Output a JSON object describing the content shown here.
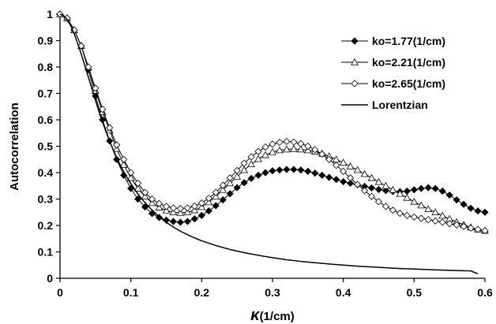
{
  "chart_data": {
    "type": "line",
    "xlabel_symbol": "κ",
    "xlabel_unit": "(1/cm)",
    "ylabel": "Autocorrelation",
    "xlim": [
      0,
      0.6
    ],
    "ylim": [
      0,
      1
    ],
    "x_ticks": [
      "0",
      "0.1",
      "0.2",
      "0.3",
      "0.4",
      "0.5",
      "0.6"
    ],
    "y_ticks": [
      "0",
      "0.1",
      "0.2",
      "0.3",
      "0.4",
      "0.5",
      "0.6",
      "0.7",
      "0.8",
      "0.9",
      "1"
    ],
    "grid": false,
    "legend_position": "top-right",
    "series": [
      {
        "name": "ko=1.77(1/cm)",
        "marker": "filled-diamond",
        "color": "#000000",
        "x": [
          0,
          0.01,
          0.02,
          0.03,
          0.04,
          0.05,
          0.06,
          0.07,
          0.08,
          0.09,
          0.1,
          0.11,
          0.12,
          0.13,
          0.14,
          0.15,
          0.16,
          0.17,
          0.18,
          0.19,
          0.2,
          0.21,
          0.22,
          0.23,
          0.24,
          0.25,
          0.26,
          0.27,
          0.28,
          0.29,
          0.3,
          0.31,
          0.32,
          0.33,
          0.34,
          0.35,
          0.36,
          0.37,
          0.38,
          0.39,
          0.4,
          0.41,
          0.42,
          0.43,
          0.44,
          0.45,
          0.46,
          0.47,
          0.48,
          0.49,
          0.5,
          0.51,
          0.52,
          0.53,
          0.54,
          0.55,
          0.56,
          0.57,
          0.58,
          0.59,
          0.6
        ],
        "values": [
          1.0,
          0.985,
          0.94,
          0.88,
          0.79,
          0.69,
          0.6,
          0.52,
          0.45,
          0.39,
          0.34,
          0.3,
          0.27,
          0.245,
          0.23,
          0.22,
          0.215,
          0.212,
          0.215,
          0.225,
          0.238,
          0.255,
          0.275,
          0.297,
          0.32,
          0.343,
          0.362,
          0.378,
          0.39,
          0.4,
          0.407,
          0.41,
          0.412,
          0.412,
          0.41,
          0.405,
          0.398,
          0.39,
          0.382,
          0.374,
          0.366,
          0.36,
          0.354,
          0.348,
          0.342,
          0.336,
          0.332,
          0.329,
          0.328,
          0.33,
          0.335,
          0.34,
          0.343,
          0.34,
          0.33,
          0.315,
          0.297,
          0.28,
          0.265,
          0.255,
          0.25
        ]
      },
      {
        "name": "ko=2.21(1/cm)",
        "marker": "open-triangle",
        "color": "#000000",
        "x": [
          0,
          0.01,
          0.02,
          0.03,
          0.04,
          0.05,
          0.06,
          0.07,
          0.08,
          0.09,
          0.1,
          0.11,
          0.12,
          0.13,
          0.14,
          0.15,
          0.16,
          0.17,
          0.18,
          0.19,
          0.2,
          0.21,
          0.22,
          0.23,
          0.24,
          0.25,
          0.26,
          0.27,
          0.28,
          0.29,
          0.3,
          0.31,
          0.32,
          0.33,
          0.34,
          0.35,
          0.36,
          0.37,
          0.38,
          0.39,
          0.4,
          0.41,
          0.42,
          0.43,
          0.44,
          0.45,
          0.46,
          0.47,
          0.48,
          0.49,
          0.5,
          0.51,
          0.52,
          0.53,
          0.54,
          0.55,
          0.56,
          0.57,
          0.58,
          0.59,
          0.6
        ],
        "values": [
          1.0,
          0.985,
          0.94,
          0.88,
          0.8,
          0.71,
          0.63,
          0.56,
          0.49,
          0.43,
          0.38,
          0.34,
          0.31,
          0.285,
          0.268,
          0.257,
          0.25,
          0.248,
          0.25,
          0.258,
          0.27,
          0.288,
          0.31,
          0.335,
          0.36,
          0.385,
          0.41,
          0.432,
          0.452,
          0.467,
          0.478,
          0.485,
          0.488,
          0.49,
          0.488,
          0.485,
          0.48,
          0.472,
          0.462,
          0.45,
          0.438,
          0.424,
          0.41,
          0.395,
          0.38,
          0.365,
          0.35,
          0.335,
          0.32,
          0.305,
          0.29,
          0.276,
          0.262,
          0.25,
          0.237,
          0.225,
          0.213,
          0.203,
          0.193,
          0.185,
          0.18
        ]
      },
      {
        "name": "ko=2.65(1/cm)",
        "marker": "open-diamond",
        "color": "#000000",
        "x": [
          0,
          0.01,
          0.02,
          0.03,
          0.04,
          0.05,
          0.06,
          0.07,
          0.08,
          0.09,
          0.1,
          0.11,
          0.12,
          0.13,
          0.14,
          0.15,
          0.16,
          0.17,
          0.18,
          0.19,
          0.2,
          0.21,
          0.22,
          0.23,
          0.24,
          0.25,
          0.26,
          0.27,
          0.28,
          0.29,
          0.3,
          0.31,
          0.32,
          0.33,
          0.34,
          0.35,
          0.36,
          0.37,
          0.38,
          0.39,
          0.4,
          0.41,
          0.42,
          0.43,
          0.44,
          0.45,
          0.46,
          0.47,
          0.48,
          0.49,
          0.5,
          0.51,
          0.52,
          0.53,
          0.54,
          0.55,
          0.56,
          0.57,
          0.58,
          0.59,
          0.6
        ],
        "values": [
          1.0,
          0.985,
          0.94,
          0.88,
          0.8,
          0.72,
          0.64,
          0.57,
          0.505,
          0.45,
          0.4,
          0.36,
          0.325,
          0.3,
          0.283,
          0.272,
          0.266,
          0.264,
          0.266,
          0.273,
          0.285,
          0.303,
          0.325,
          0.352,
          0.38,
          0.408,
          0.435,
          0.46,
          0.48,
          0.497,
          0.508,
          0.515,
          0.518,
          0.516,
          0.51,
          0.5,
          0.487,
          0.47,
          0.45,
          0.428,
          0.405,
          0.38,
          0.355,
          0.332,
          0.31,
          0.29,
          0.272,
          0.258,
          0.246,
          0.238,
          0.232,
          0.227,
          0.222,
          0.217,
          0.212,
          0.207,
          0.202,
          0.196,
          0.19,
          0.185,
          0.18
        ]
      },
      {
        "name": "Lorentzian",
        "marker": "none",
        "color": "#000000",
        "x": [
          0,
          0.005,
          0.01,
          0.015,
          0.02,
          0.025,
          0.03,
          0.035,
          0.04,
          0.045,
          0.05,
          0.055,
          0.06,
          0.065,
          0.07,
          0.075,
          0.08,
          0.085,
          0.09,
          0.095,
          0.1,
          0.11,
          0.12,
          0.13,
          0.14,
          0.15,
          0.16,
          0.17,
          0.18,
          0.19,
          0.2,
          0.22,
          0.24,
          0.26,
          0.28,
          0.3,
          0.32,
          0.34,
          0.36,
          0.38,
          0.4,
          0.42,
          0.44,
          0.46,
          0.48,
          0.5,
          0.52,
          0.54,
          0.56,
          0.58,
          0.59
        ],
        "values": [
          1.0,
          0.995,
          0.98,
          0.957,
          0.926,
          0.889,
          0.849,
          0.806,
          0.762,
          0.718,
          0.674,
          0.632,
          0.592,
          0.554,
          0.519,
          0.487,
          0.457,
          0.429,
          0.403,
          0.38,
          0.358,
          0.319,
          0.286,
          0.258,
          0.233,
          0.212,
          0.194,
          0.178,
          0.165,
          0.153,
          0.142,
          0.124,
          0.109,
          0.097,
          0.087,
          0.078,
          0.07,
          0.064,
          0.059,
          0.054,
          0.05,
          0.046,
          0.043,
          0.04,
          0.037,
          0.035,
          0.033,
          0.031,
          0.029,
          0.028,
          0.017
        ]
      }
    ]
  }
}
